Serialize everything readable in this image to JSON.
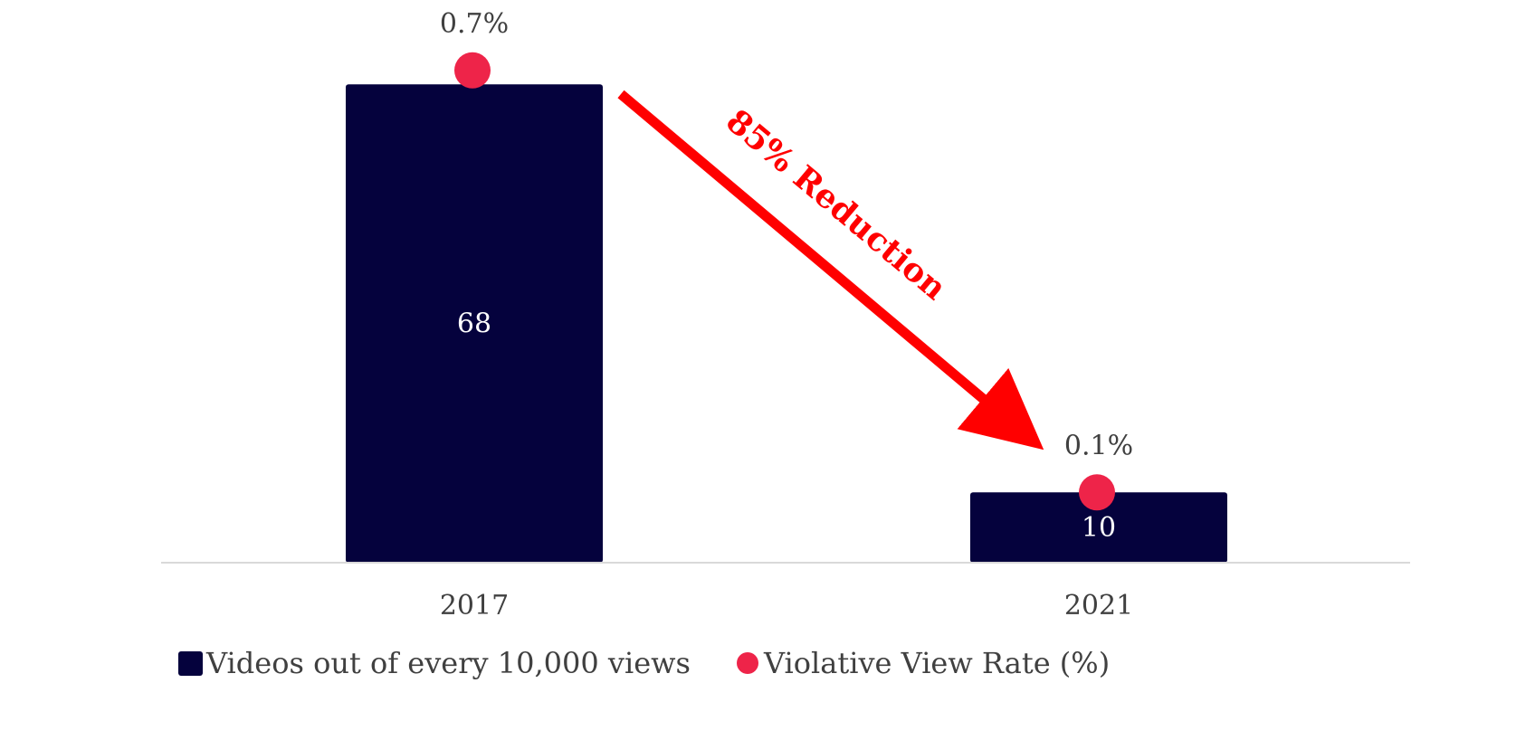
{
  "chart_data": {
    "type": "bar",
    "categories": [
      "2017",
      "2021"
    ],
    "series": [
      {
        "name": "Videos out of every 10,000 views",
        "kind": "bar",
        "axis": "primary",
        "values": [
          68,
          10
        ],
        "labels": [
          "68",
          "10"
        ],
        "color": "#05023d"
      },
      {
        "name": "Violative View Rate (%)",
        "kind": "scatter",
        "axis": "secondary",
        "values": [
          0.7,
          0.1
        ],
        "labels": [
          "0.7%",
          "0.1%"
        ],
        "color": "#ee2449"
      }
    ],
    "title": "",
    "xlabel": "",
    "ylabel": "",
    "ylim": [
      0,
      80
    ],
    "y2lim": [
      0,
      0.8
    ],
    "legend": "bottom-left",
    "grid": false,
    "annotation": {
      "text": "85% Reduction",
      "color": "#ff0000"
    }
  }
}
